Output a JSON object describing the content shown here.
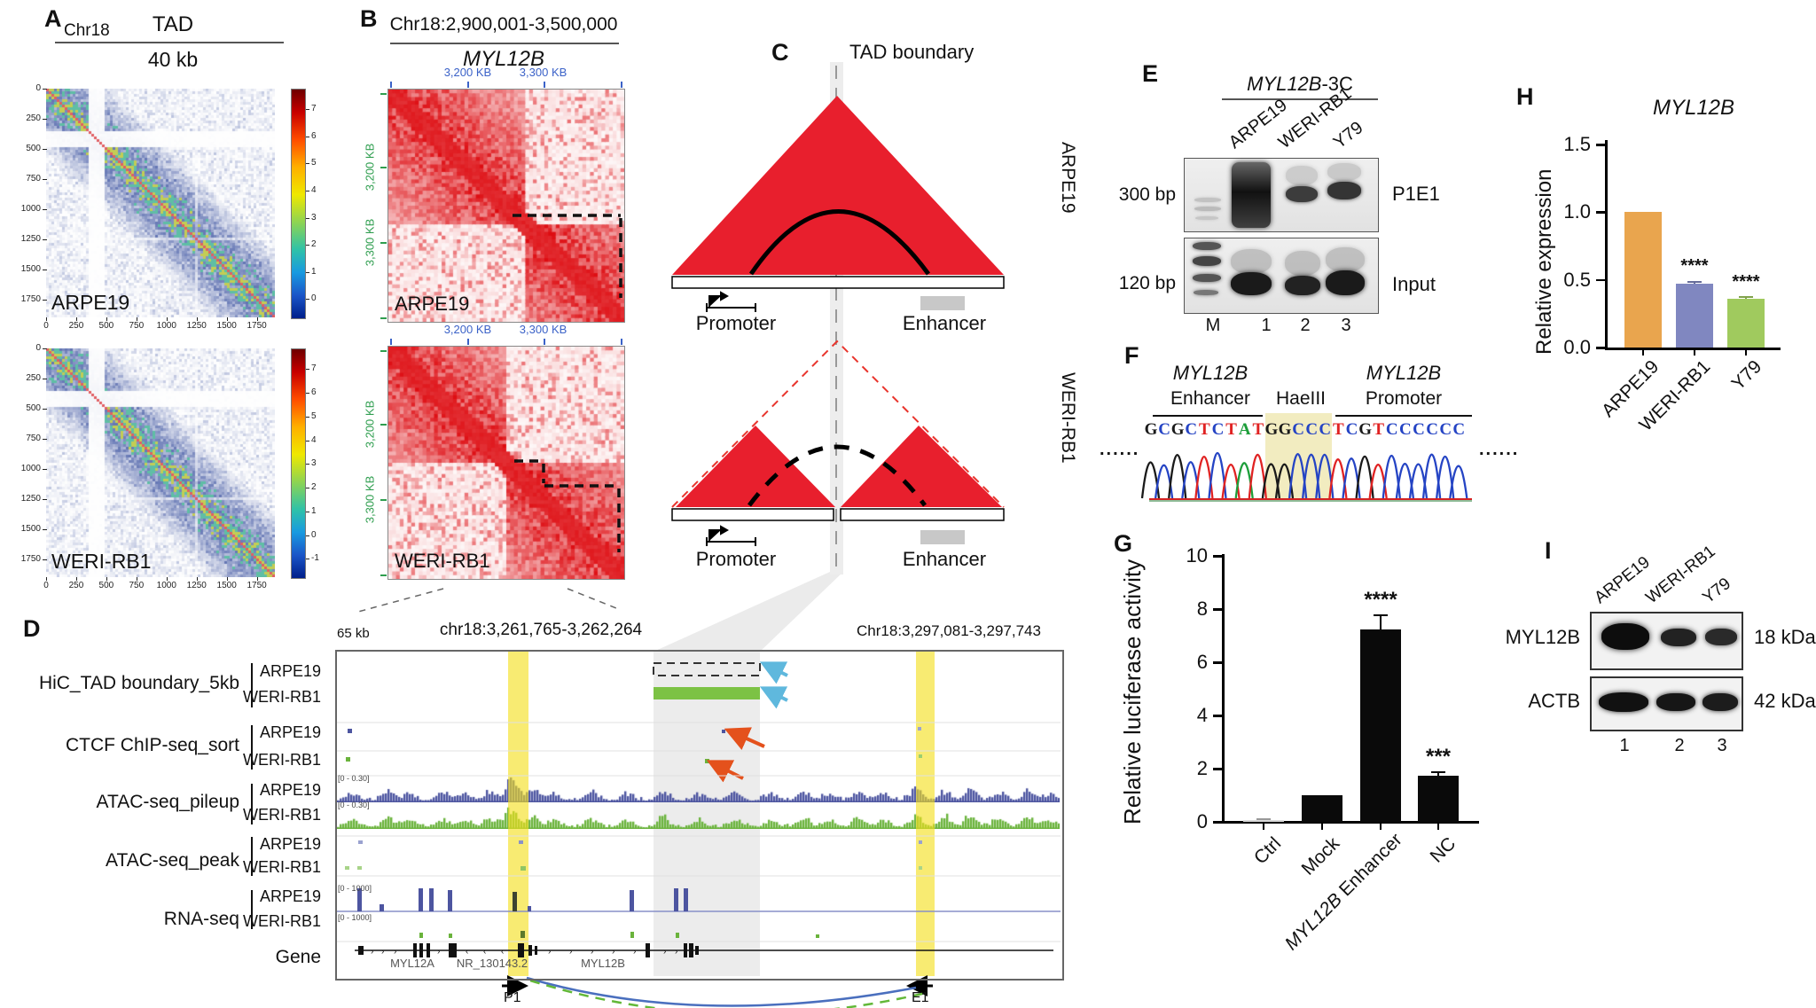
{
  "panels": {
    "a": {
      "label": "A",
      "chr": "Chr18",
      "title": "TAD",
      "subtitle": "40 kb",
      "axis_ticks": [
        "0",
        "250",
        "500",
        "750",
        "1000",
        "1250",
        "1500",
        "1750"
      ],
      "maps": [
        {
          "name": "ARPE19",
          "colorbar_ticks": [
            "7",
            "6",
            "5",
            "4",
            "3",
            "2",
            "1",
            "0"
          ]
        },
        {
          "name": "WERI-RB1",
          "colorbar_ticks": [
            "7",
            "6",
            "5",
            "4",
            "3",
            "2",
            "1",
            "0",
            "-1"
          ]
        }
      ]
    },
    "b": {
      "label": "B",
      "title": "Chr18:2,900,001-3,500,000",
      "gene": "MYL12B",
      "x_ticks": [
        "3,200 KB",
        "3,300 KB"
      ],
      "y_ticks": [
        "3,200 KB",
        "3,300 KB"
      ],
      "maps": [
        {
          "name": "ARPE19"
        },
        {
          "name": "WERI-RB1"
        }
      ]
    },
    "c": {
      "label": "C",
      "boundary_label": "TAD boundary",
      "top_name": "ARPE19",
      "bottom_name": "WERI-RB1",
      "promoter": "Promoter",
      "enhancer": "Enhancer"
    },
    "d": {
      "label": "D",
      "scale": "65 kb",
      "region_left": "chr18:3,261,765-3,262,264",
      "region_right": "Chr18:3,297,081-3,297,743",
      "tracks": [
        {
          "name": "HiC_TAD boundary_5kb",
          "rows": [
            "ARPE19",
            "WERI-RB1"
          ]
        },
        {
          "name": "CTCF ChIP-seq_sort",
          "rows": [
            "ARPE19",
            "WERI-RB1"
          ]
        },
        {
          "name": "ATAC-seq_pileup",
          "rows": [
            "ARPE19",
            "WERI-RB1"
          ]
        },
        {
          "name": "ATAC-seq_peak",
          "rows": [
            "ARPE19",
            "WERI-RB1"
          ]
        },
        {
          "name": "RNA-seq",
          "rows": [
            "ARPE19",
            "WERI-RB1"
          ]
        }
      ],
      "gene_row_label": "Gene",
      "range_atac": "[0 - 0.30]",
      "range_rna": "[0 - 1000]",
      "genes": [
        "MYL12A",
        "NR_130143.2",
        "MYL12B"
      ],
      "anchors": {
        "p1": "P1",
        "e1": "E1"
      }
    },
    "e": {
      "label": "E",
      "title_italic": "MYL12B",
      "title_rest": "-3C",
      "lanes": [
        "ARPE19",
        "WERI-RB1",
        "Y79"
      ],
      "rows": [
        {
          "size": "300 bp",
          "band": "P1E1"
        },
        {
          "size": "120 bp",
          "band": "Input"
        }
      ],
      "lane_numbers": [
        "M",
        "1",
        "2",
        "3"
      ]
    },
    "f": {
      "label": "F",
      "left_gene": "MYL12B",
      "left_sub": "Enhancer",
      "mid": "HaeIII",
      "right_gene": "MYL12B",
      "right_sub": "Promoter",
      "sequence": "GCGCTCTATGGCCCTCGTCCCCCC",
      "highlight_start": 9,
      "highlight_len": 4,
      "dots_left": "......",
      "dots_right": "......",
      "base_colors": {
        "G": "#1a1a1a",
        "C": "#2544c4",
        "T": "#e02222",
        "A": "#1d9e3a"
      }
    },
    "g": {
      "label": "G",
      "yticks": [
        "0",
        "2",
        "4",
        "6",
        "8",
        "10"
      ]
    },
    "h": {
      "label": "H",
      "yticks": [
        "0.0",
        "0.5",
        "1.0",
        "1.5"
      ]
    },
    "i": {
      "label": "I",
      "lanes": [
        "ARPE19",
        "WERI-RB1",
        "Y79"
      ],
      "rows": [
        {
          "protein": "MYL12B",
          "size": "18 kDa"
        },
        {
          "protein": "ACTB",
          "size": "42 kDa"
        }
      ],
      "lane_numbers": [
        "1",
        "2",
        "3"
      ]
    }
  },
  "chart_data": [
    {
      "panel": "G",
      "type": "bar",
      "title": "",
      "ylabel": "Relative luciferase activity",
      "categories": [
        "Ctrl",
        "Mock",
        "MYL12B Enhancer",
        "NC"
      ],
      "values": [
        0.07,
        1.0,
        7.25,
        1.75
      ],
      "errors": [
        0.05,
        0,
        0.55,
        0.15
      ],
      "significance": [
        "",
        "",
        "****",
        "***"
      ],
      "ylim": [
        0,
        10
      ],
      "bar_colors": [
        "#d9d9d9",
        "#0a0a0a",
        "#0a0a0a",
        "#0a0a0a"
      ]
    },
    {
      "panel": "H",
      "type": "bar",
      "title": "MYL12B",
      "ylabel": "Relative expression",
      "categories": [
        "ARPE19",
        "WERI-RB1",
        "Y79"
      ],
      "values": [
        1.0,
        0.47,
        0.36
      ],
      "errors": [
        0,
        0.02,
        0.015
      ],
      "significance": [
        "",
        "****",
        "****"
      ],
      "ylim": [
        0,
        1.5
      ],
      "bar_colors": [
        "#E9A54E",
        "#8087C0",
        "#A0CA5E"
      ]
    }
  ]
}
